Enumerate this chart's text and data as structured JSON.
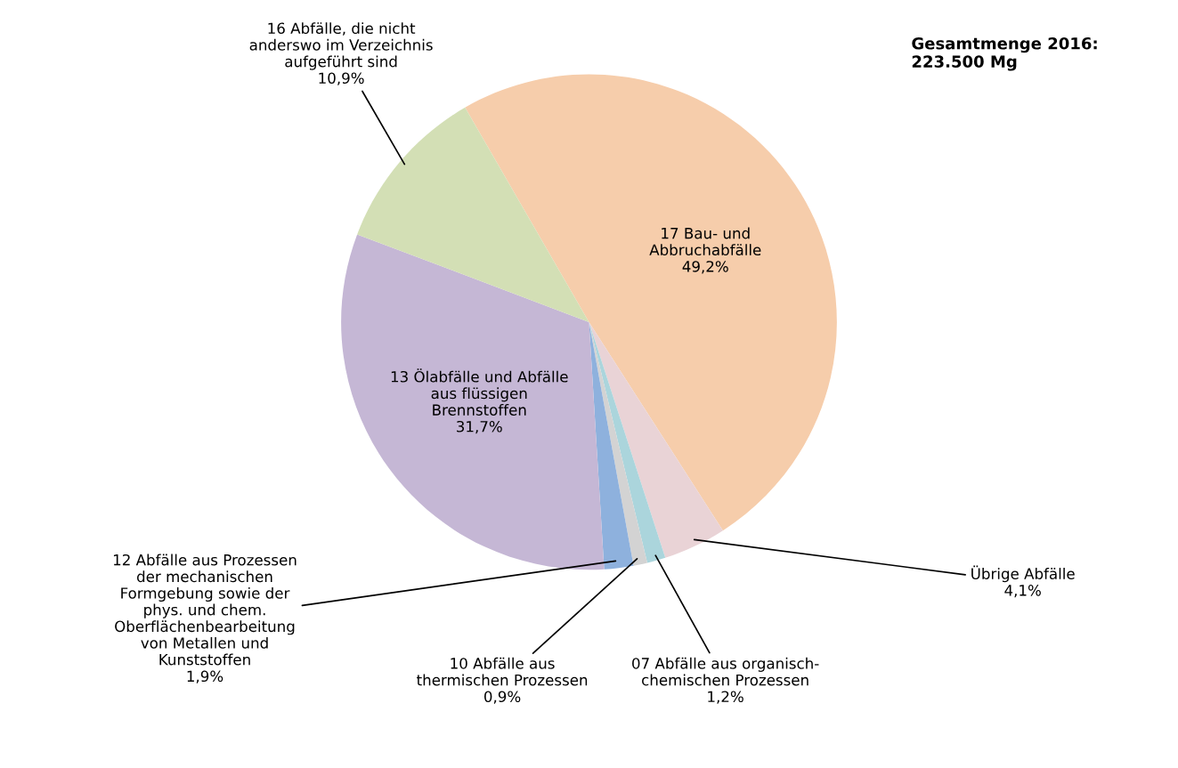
{
  "chart_data": {
    "type": "pie",
    "categories": [
      "17 Bau- und\nAbbruchabfälle",
      "Übrige Abfälle",
      "07 Abfälle aus organisch-\nchemischen Prozessen",
      "10 Abfälle aus\nthermischen Prozessen",
      "12 Abfälle aus Prozessen\nder mechanischen\nFormgebung sowie der\nphys. und chem.\nOberflächenbearbeitung\nvon Metallen und\nKunststoffen",
      "13 Ölabfälle und Abfälle\naus flüssigen\nBrennstoffen",
      "16 Abfälle, die nicht\nanderswo im Verzeichnis\naufgeführt sind"
    ],
    "values": [
      49.2,
      4.1,
      1.2,
      0.9,
      1.9,
      31.7,
      10.9
    ],
    "value_labels": [
      "49,2%",
      "4,1%",
      "1,2%",
      "0,9%",
      "1,9%",
      "31,7%",
      "10,9%"
    ],
    "colors": [
      "#f6cdab",
      "#e9d3d6",
      "#abd5dc",
      "#d3d3d3",
      "#8eb1dd",
      "#c5b7d5",
      "#d3dfb5"
    ],
    "annotations": [
      "Gesamtmenge 2016:\n223.500 Mg"
    ],
    "legend": false
  }
}
